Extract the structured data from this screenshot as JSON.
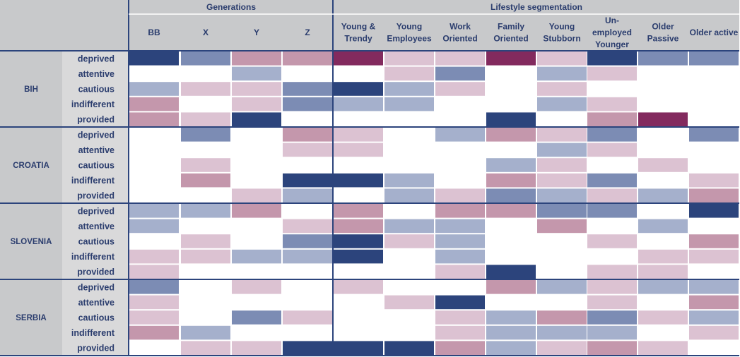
{
  "chart_data": {
    "type": "heatmap",
    "column_groups": [
      {
        "label": "Generations",
        "columns": [
          "BB",
          "X",
          "Y",
          "Z"
        ]
      },
      {
        "label": "Lifestyle segmentation",
        "columns": [
          "Young & Trendy",
          "Young Employees",
          "Work Oriented",
          "Family Oriented",
          "Young Stubborn",
          "Un-employed Younger",
          "Older Passive",
          "Older active"
        ]
      }
    ],
    "columns": [
      "BB",
      "X",
      "Y",
      "Z",
      "Young & Trendy",
      "Young Employees",
      "Work Oriented",
      "Family Oriented",
      "Young Stubborn",
      "Un-employed Younger",
      "Older Passive",
      "Older active"
    ],
    "column_display": [
      [
        "BB"
      ],
      [
        "X"
      ],
      [
        "Y"
      ],
      [
        "Z"
      ],
      [
        "Young &",
        "Trendy"
      ],
      [
        "Young",
        "Employees"
      ],
      [
        "Work",
        "Oriented"
      ],
      [
        "Family",
        "Oriented"
      ],
      [
        "Young",
        "Stubborn"
      ],
      [
        "Un-",
        "employed",
        "Younger"
      ],
      [
        "Older",
        "Passive"
      ],
      [
        "Older active"
      ]
    ],
    "countries": [
      "BIH",
      "CROATIA",
      "SLOVENIA",
      "SERBIA"
    ],
    "levels": [
      "deprived",
      "attentive",
      "cautious",
      "indifferent",
      "provided"
    ],
    "palette": {
      "navy": "#2c447c",
      "blue": "#7c8cb4",
      "light_blue": "#a5b0cc",
      "plum": "#832a5e",
      "mauve": "#c497ac",
      "pink": "#dcc2d2",
      "white": "#ffffff"
    },
    "cells": {
      "BIH": [
        [
          "navy",
          "blue",
          "mauve",
          "mauve",
          "plum",
          "pink",
          "pink",
          "plum",
          "pink",
          "navy",
          "blue",
          "blue"
        ],
        [
          "",
          "",
          "light_blue",
          "",
          "",
          "pink",
          "blue",
          "",
          "light_blue",
          "pink",
          "",
          ""
        ],
        [
          "light_blue",
          "pink",
          "pink",
          "blue",
          "navy",
          "light_blue",
          "pink",
          "",
          "pink",
          "",
          "",
          ""
        ],
        [
          "mauve",
          "",
          "pink",
          "blue",
          "light_blue",
          "light_blue",
          "",
          "",
          "light_blue",
          "pink",
          "",
          ""
        ],
        [
          "mauve",
          "pink",
          "navy",
          "",
          "",
          "",
          "",
          "navy",
          "",
          "mauve",
          "plum",
          ""
        ]
      ],
      "CROATIA": [
        [
          "",
          "blue",
          "",
          "mauve",
          "pink",
          "",
          "light_blue",
          "mauve",
          "pink",
          "blue",
          "",
          "blue"
        ],
        [
          "",
          "",
          "",
          "pink",
          "pink",
          "",
          "",
          "",
          "light_blue",
          "pink",
          "",
          ""
        ],
        [
          "",
          "pink",
          "",
          "",
          "",
          "",
          "",
          "light_blue",
          "pink",
          "",
          "pink",
          ""
        ],
        [
          "",
          "mauve",
          "",
          "navy",
          "navy",
          "light_blue",
          "",
          "mauve",
          "pink",
          "blue",
          "",
          "pink"
        ],
        [
          "",
          "",
          "pink",
          "light_blue",
          "",
          "light_blue",
          "pink",
          "blue",
          "light_blue",
          "pink",
          "light_blue",
          "mauve"
        ]
      ],
      "SLOVENIA": [
        [
          "light_blue",
          "light_blue",
          "mauve",
          "",
          "mauve",
          "",
          "mauve",
          "mauve",
          "blue",
          "blue",
          "",
          "navy"
        ],
        [
          "light_blue",
          "",
          "",
          "pink",
          "mauve",
          "light_blue",
          "light_blue",
          "",
          "mauve",
          "",
          "light_blue",
          ""
        ],
        [
          "",
          "pink",
          "",
          "blue",
          "navy",
          "pink",
          "light_blue",
          "",
          "",
          "pink",
          "",
          "mauve"
        ],
        [
          "pink",
          "pink",
          "light_blue",
          "light_blue",
          "navy",
          "",
          "light_blue",
          "",
          "",
          "",
          "pink",
          "pink"
        ],
        [
          "pink",
          "",
          "",
          "",
          "",
          "",
          "pink",
          "navy",
          "",
          "pink",
          "pink",
          ""
        ]
      ],
      "SERBIA": [
        [
          "blue",
          "",
          "pink",
          "",
          "pink",
          "",
          "",
          "mauve",
          "light_blue",
          "pink",
          "light_blue",
          "light_blue"
        ],
        [
          "pink",
          "",
          "",
          "",
          "",
          "pink",
          "navy",
          "",
          "",
          "pink",
          "",
          "mauve"
        ],
        [
          "pink",
          "",
          "blue",
          "pink",
          "",
          "",
          "pink",
          "light_blue",
          "mauve",
          "blue",
          "pink",
          "light_blue"
        ],
        [
          "mauve",
          "light_blue",
          "",
          "",
          "",
          "",
          "pink",
          "light_blue",
          "light_blue",
          "light_blue",
          "",
          "pink"
        ],
        [
          "",
          "pink",
          "pink",
          "navy",
          "navy",
          "navy",
          "mauve",
          "light_blue",
          "pink",
          "mauve",
          "pink",
          ""
        ]
      ]
    },
    "grid": false,
    "legend": "none"
  }
}
